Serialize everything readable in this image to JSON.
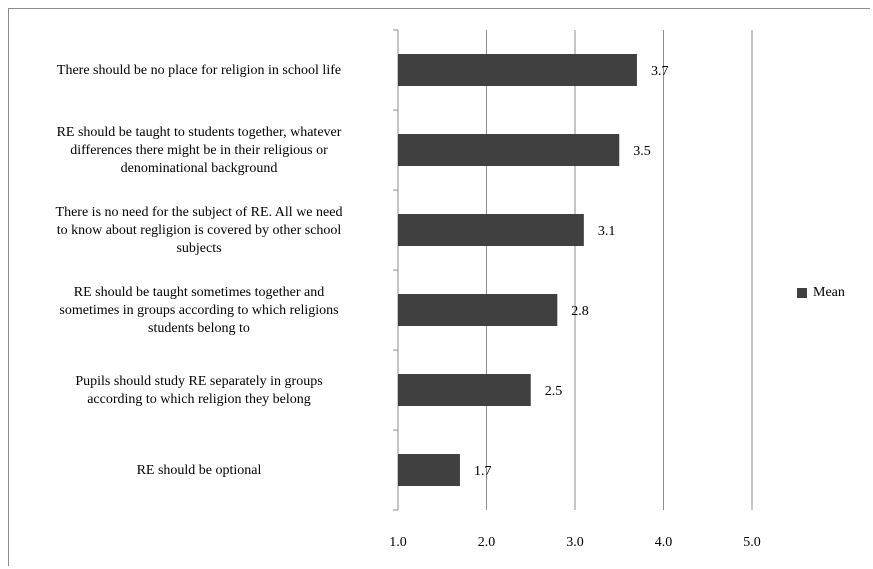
{
  "chart_data": {
    "type": "bar",
    "orientation": "horizontal",
    "categories": [
      "There should be no place for religion in school life",
      "RE should be taught to students together, whatever differences there might be in their religious or denominational background",
      "There is no need for the subject of RE. All we need to know about regligion is covered by other school subjects",
      "RE should be taught sometimes together and sometimes in groups according to which religions students belong to",
      "Pupils should study RE separately in groups according to which religion they belong",
      "RE should be optional"
    ],
    "category_lines": [
      [
        "There should be no place for religion in school life"
      ],
      [
        "RE should be taught to students together, whatever",
        "differences there might be in their religious or",
        "denominational background"
      ],
      [
        "There is no need for the subject of RE. All we need",
        "to know about regligion is covered by other school",
        "subjects"
      ],
      [
        "RE should be taught sometimes together and",
        "sometimes in groups according to which religions",
        "students belong to"
      ],
      [
        "Pupils should study RE separately in groups",
        "according to which religion they belong"
      ],
      [
        "RE should be optional"
      ]
    ],
    "series": [
      {
        "name": "Mean",
        "values": [
          3.7,
          3.5,
          3.1,
          2.8,
          2.5,
          1.7
        ],
        "labels": [
          "3.7",
          "3.5",
          "3.1",
          "2.8",
          "2.5",
          "1.7"
        ]
      }
    ],
    "xlim": [
      1.0,
      5.0
    ],
    "xticks": [
      "1.0",
      "2.0",
      "3.0",
      "4.0",
      "5.0"
    ],
    "grid": true,
    "legend": "right",
    "bar_color": "#404040"
  }
}
